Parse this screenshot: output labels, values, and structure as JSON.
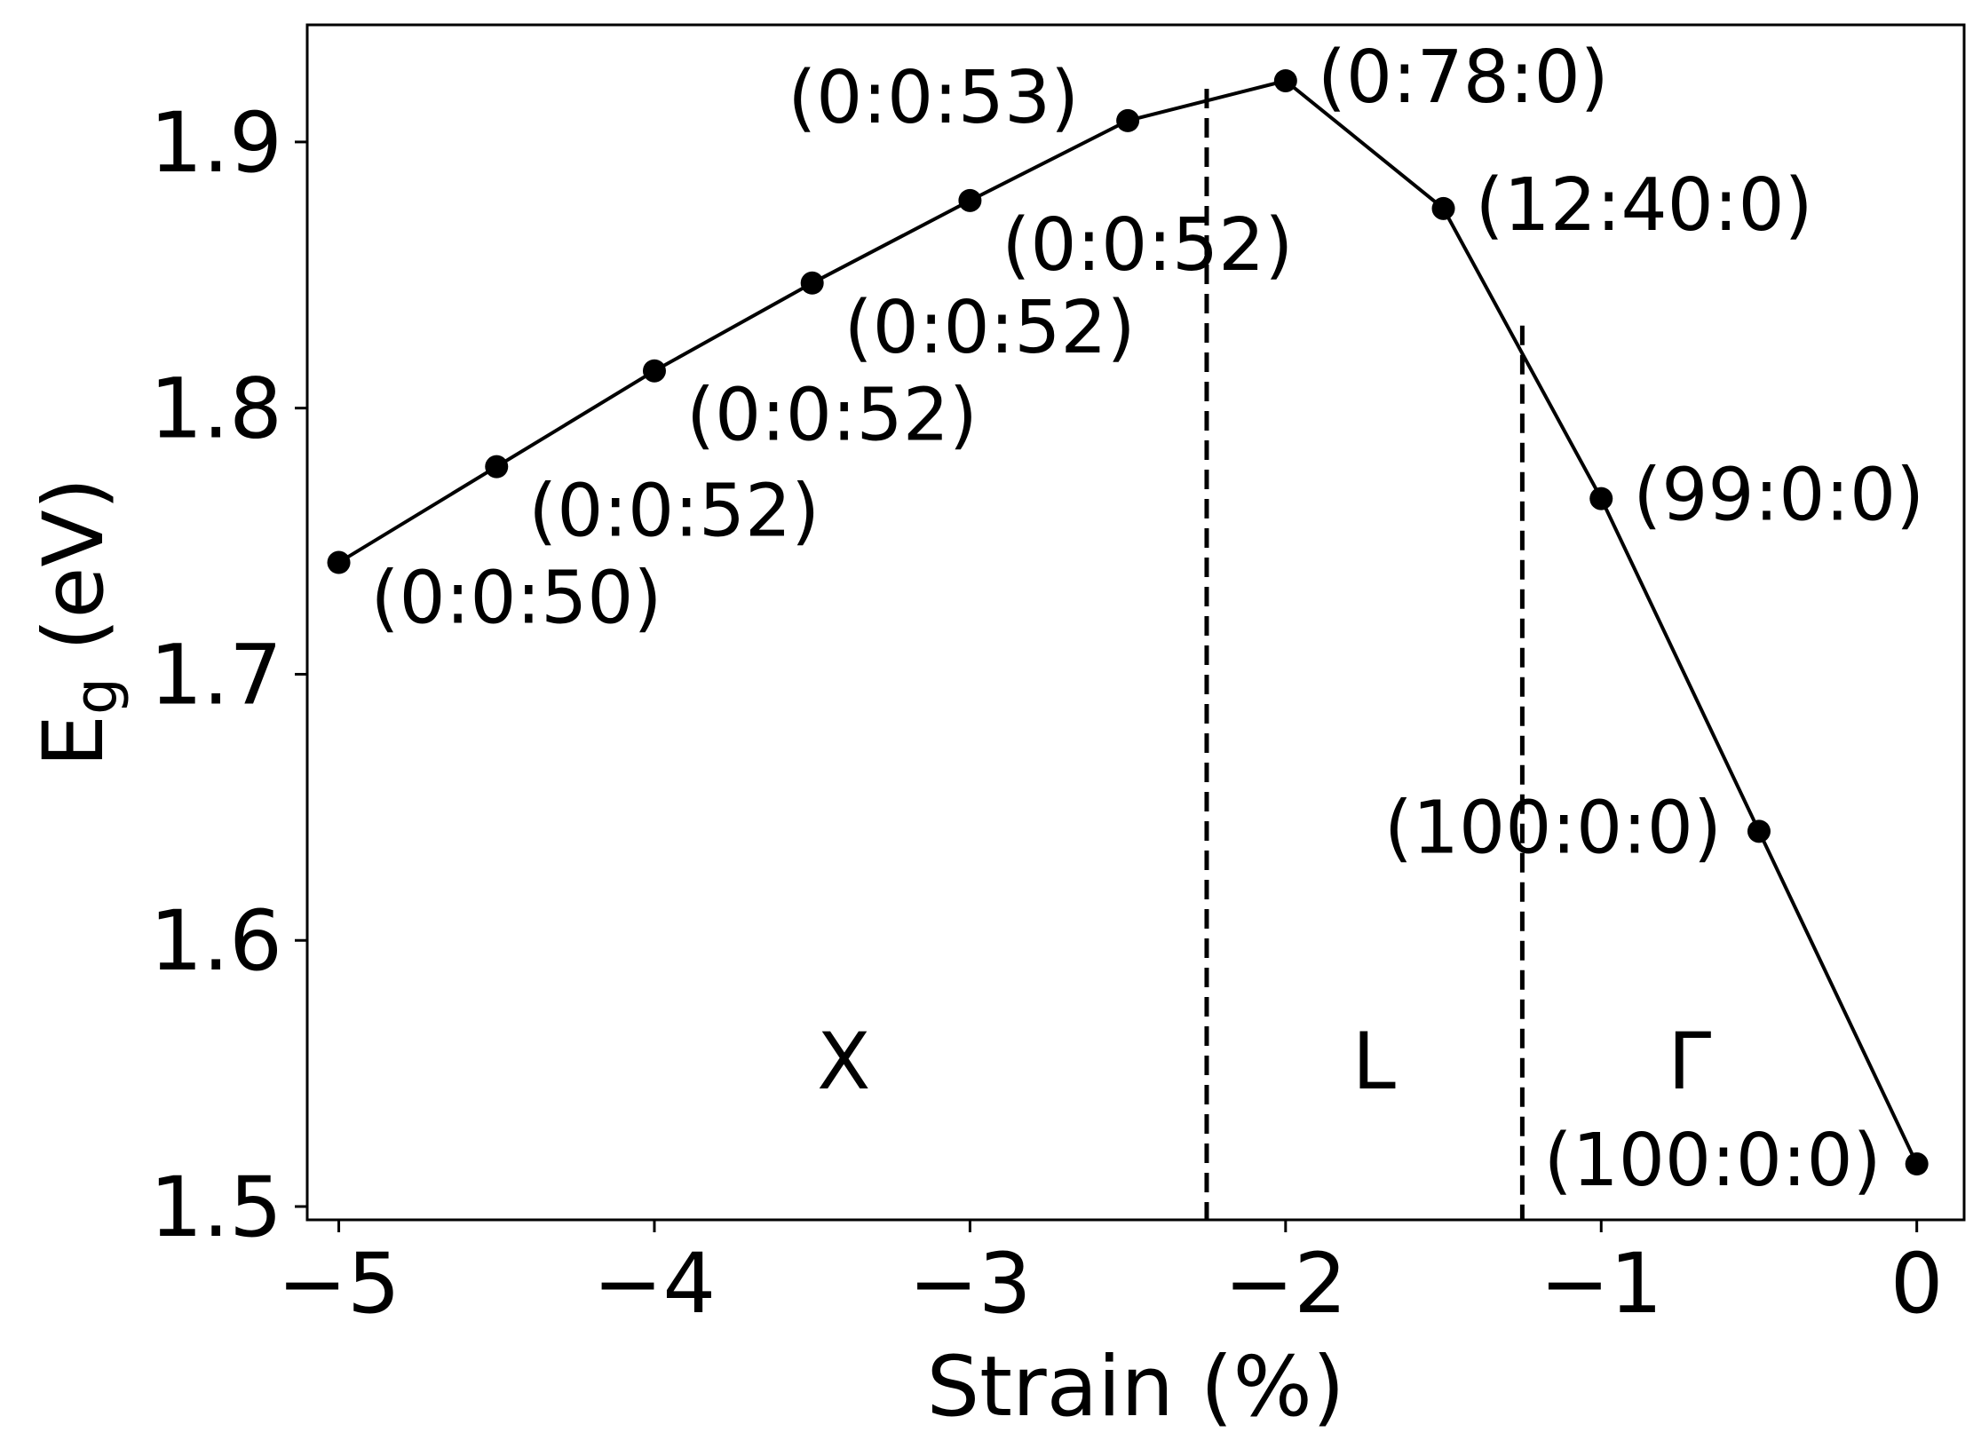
{
  "chart_data": {
    "type": "line",
    "xlabel": "Strain (%)",
    "ylabel": {
      "main": "E",
      "sub": "g",
      "unit": " (eV)"
    },
    "xlim": [
      -5.1,
      0.15
    ],
    "ylim": [
      1.495,
      1.944
    ],
    "x_ticks": [
      {
        "value": -5,
        "label": "−5"
      },
      {
        "value": -4,
        "label": "−4"
      },
      {
        "value": -3,
        "label": "−3"
      },
      {
        "value": -2,
        "label": "−2"
      },
      {
        "value": -1,
        "label": "−1"
      },
      {
        "value": 0,
        "label": "0"
      }
    ],
    "y_ticks": [
      {
        "value": 1.5,
        "label": "1.5"
      },
      {
        "value": 1.6,
        "label": "1.6"
      },
      {
        "value": 1.7,
        "label": "1.7"
      },
      {
        "value": 1.8,
        "label": "1.8"
      },
      {
        "value": 1.9,
        "label": "1.9"
      }
    ],
    "grid": false,
    "series": [
      {
        "color": "#000000",
        "marker": "circle",
        "points": [
          {
            "x": -5.0,
            "y": 1.742,
            "label": "(0:0:50)"
          },
          {
            "x": -4.5,
            "y": 1.778,
            "label": "(0:0:52)"
          },
          {
            "x": -4.0,
            "y": 1.814,
            "label": "(0:0:52)"
          },
          {
            "x": -3.5,
            "y": 1.847,
            "label": "(0:0:52)"
          },
          {
            "x": -3.0,
            "y": 1.878,
            "label": "(0:0:52)"
          },
          {
            "x": -2.5,
            "y": 1.908,
            "label": "(0:0:53)"
          },
          {
            "x": -2.0,
            "y": 1.923,
            "label": "(0:78:0)"
          },
          {
            "x": -1.5,
            "y": 1.875,
            "label": "(12:40:0)"
          },
          {
            "x": -1.0,
            "y": 1.766,
            "label": "(99:0:0)"
          },
          {
            "x": -0.5,
            "y": 1.641,
            "label": "(100:0:0)"
          },
          {
            "x": 0.0,
            "y": 1.516,
            "label": "(100:0:0)"
          }
        ]
      }
    ],
    "vlines": [
      {
        "x": -2.25,
        "y_top": 1.92,
        "style": "dashed"
      },
      {
        "x": -1.25,
        "y_top": 1.831,
        "style": "dashed"
      }
    ],
    "regions": [
      {
        "label": "X",
        "x": -3.4,
        "y": 1.555
      },
      {
        "label": "L",
        "x": -1.72,
        "y": 1.555
      },
      {
        "label": "Γ",
        "x": -0.72,
        "y": 1.555
      }
    ]
  }
}
